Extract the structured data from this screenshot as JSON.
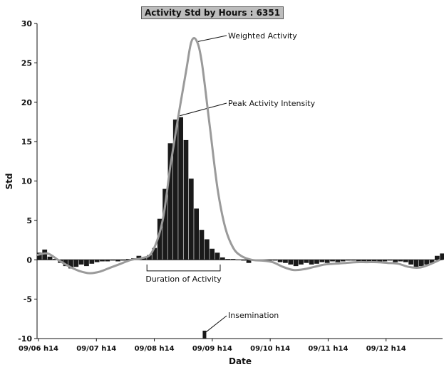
{
  "chart_data": {
    "type": "bar",
    "title": "Activity Std by Hours : 6351",
    "xlabel": "Date",
    "ylabel": "Std",
    "ylim": [
      -10,
      30
    ],
    "yticks": [
      30,
      25,
      20,
      15,
      10,
      5,
      0,
      -5,
      -10
    ],
    "x_tick_labels": [
      "09/06 h14",
      "09/07 h14",
      "09/08 h14",
      "09/09 h14",
      "09/10 h14",
      "09/11 h14",
      "09/12 h14"
    ],
    "x_range_hours": [
      0,
      155
    ],
    "bars": {
      "bar_width_hours": 2,
      "points": [
        {
          "x": 0,
          "y": 0.9
        },
        {
          "x": 2,
          "y": 1.3
        },
        {
          "x": 4,
          "y": 0.4
        },
        {
          "x": 6,
          "y": 0.1
        },
        {
          "x": 8,
          "y": -0.4
        },
        {
          "x": 10,
          "y": -0.8
        },
        {
          "x": 12,
          "y": -1.1
        },
        {
          "x": 14,
          "y": -0.9
        },
        {
          "x": 16,
          "y": -0.6
        },
        {
          "x": 18,
          "y": -0.8
        },
        {
          "x": 20,
          "y": -0.5
        },
        {
          "x": 22,
          "y": -0.3
        },
        {
          "x": 24,
          "y": -0.2
        },
        {
          "x": 26,
          "y": -0.2
        },
        {
          "x": 28,
          "y": -0.1
        },
        {
          "x": 30,
          "y": -0.2
        },
        {
          "x": 32,
          "y": -0.1
        },
        {
          "x": 34,
          "y": 0.1
        },
        {
          "x": 36,
          "y": 0.2
        },
        {
          "x": 38,
          "y": 0.5
        },
        {
          "x": 40,
          "y": 0.3
        },
        {
          "x": 42,
          "y": 0.6
        },
        {
          "x": 44,
          "y": 1.5
        },
        {
          "x": 46,
          "y": 5.2
        },
        {
          "x": 48,
          "y": 9.0
        },
        {
          "x": 50,
          "y": 14.8
        },
        {
          "x": 52,
          "y": 17.8
        },
        {
          "x": 54,
          "y": 18.1
        },
        {
          "x": 56,
          "y": 15.2
        },
        {
          "x": 58,
          "y": 10.3
        },
        {
          "x": 60,
          "y": 6.5
        },
        {
          "x": 62,
          "y": 3.8
        },
        {
          "x": 64,
          "y": 2.6
        },
        {
          "x": 66,
          "y": 1.4
        },
        {
          "x": 68,
          "y": 0.9
        },
        {
          "x": 70,
          "y": 0.3
        },
        {
          "x": 72,
          "y": 0.1
        },
        {
          "x": 74,
          "y": 0.1
        },
        {
          "x": 76,
          "y": 0.0
        },
        {
          "x": 78,
          "y": -0.1
        },
        {
          "x": 80,
          "y": -0.4
        },
        {
          "x": 82,
          "y": 0.0
        },
        {
          "x": 84,
          "y": 0.0
        },
        {
          "x": 86,
          "y": 0.0
        },
        {
          "x": 88,
          "y": -0.1
        },
        {
          "x": 90,
          "y": -0.1
        },
        {
          "x": 92,
          "y": -0.3
        },
        {
          "x": 94,
          "y": -0.4
        },
        {
          "x": 96,
          "y": -0.6
        },
        {
          "x": 98,
          "y": -0.8
        },
        {
          "x": 100,
          "y": -0.6
        },
        {
          "x": 102,
          "y": -0.4
        },
        {
          "x": 104,
          "y": -0.6
        },
        {
          "x": 106,
          "y": -0.5
        },
        {
          "x": 108,
          "y": -0.3
        },
        {
          "x": 110,
          "y": -0.4
        },
        {
          "x": 112,
          "y": -0.2
        },
        {
          "x": 114,
          "y": -0.3
        },
        {
          "x": 116,
          "y": -0.2
        },
        {
          "x": 118,
          "y": -0.1
        },
        {
          "x": 120,
          "y": -0.1
        },
        {
          "x": 122,
          "y": -0.2
        },
        {
          "x": 124,
          "y": -0.3
        },
        {
          "x": 126,
          "y": -0.4
        },
        {
          "x": 128,
          "y": -0.2
        },
        {
          "x": 130,
          "y": -0.3
        },
        {
          "x": 132,
          "y": -0.2
        },
        {
          "x": 134,
          "y": -0.1
        },
        {
          "x": 136,
          "y": -0.3
        },
        {
          "x": 138,
          "y": -0.2
        },
        {
          "x": 140,
          "y": -0.3
        },
        {
          "x": 142,
          "y": -0.6
        },
        {
          "x": 144,
          "y": -0.9
        },
        {
          "x": 146,
          "y": -0.8
        },
        {
          "x": 148,
          "y": -0.6
        },
        {
          "x": 150,
          "y": -0.4
        },
        {
          "x": 152,
          "y": 0.5
        },
        {
          "x": 154,
          "y": 0.8
        }
      ]
    },
    "line": {
      "color": "#9a9a9a",
      "points": [
        {
          "x": 0,
          "y": 0.6
        },
        {
          "x": 4,
          "y": 0.8
        },
        {
          "x": 8,
          "y": 0.0
        },
        {
          "x": 12,
          "y": -0.8
        },
        {
          "x": 16,
          "y": -1.4
        },
        {
          "x": 20,
          "y": -1.7
        },
        {
          "x": 24,
          "y": -1.5
        },
        {
          "x": 28,
          "y": -1.0
        },
        {
          "x": 32,
          "y": -0.5
        },
        {
          "x": 36,
          "y": 0.0
        },
        {
          "x": 40,
          "y": 0.2
        },
        {
          "x": 44,
          "y": 1.0
        },
        {
          "x": 48,
          "y": 5.0
        },
        {
          "x": 51,
          "y": 12.0
        },
        {
          "x": 54,
          "y": 18.2
        },
        {
          "x": 57,
          "y": 24.0
        },
        {
          "x": 59,
          "y": 27.7
        },
        {
          "x": 61,
          "y": 27.8
        },
        {
          "x": 63,
          "y": 25.0
        },
        {
          "x": 66,
          "y": 17.0
        },
        {
          "x": 69,
          "y": 9.0
        },
        {
          "x": 72,
          "y": 4.0
        },
        {
          "x": 75,
          "y": 1.5
        },
        {
          "x": 78,
          "y": 0.5
        },
        {
          "x": 82,
          "y": 0.0
        },
        {
          "x": 86,
          "y": -0.1
        },
        {
          "x": 90,
          "y": -0.3
        },
        {
          "x": 94,
          "y": -0.9
        },
        {
          "x": 98,
          "y": -1.3
        },
        {
          "x": 102,
          "y": -1.2
        },
        {
          "x": 106,
          "y": -0.9
        },
        {
          "x": 110,
          "y": -0.6
        },
        {
          "x": 114,
          "y": -0.5
        },
        {
          "x": 118,
          "y": -0.4
        },
        {
          "x": 122,
          "y": -0.3
        },
        {
          "x": 126,
          "y": -0.3
        },
        {
          "x": 130,
          "y": -0.3
        },
        {
          "x": 134,
          "y": -0.4
        },
        {
          "x": 138,
          "y": -0.5
        },
        {
          "x": 142,
          "y": -0.9
        },
        {
          "x": 146,
          "y": -1.0
        },
        {
          "x": 150,
          "y": -0.6
        },
        {
          "x": 154,
          "y": 0.0
        }
      ]
    },
    "insemination": {
      "x": 64,
      "y": -10,
      "height": 1.0
    },
    "duration_bracket": {
      "x_start": 42,
      "x_end": 70,
      "y": -0.6
    },
    "annotations": [
      {
        "text": "Weighted Activity",
        "x": 61,
        "y": 27.8
      },
      {
        "text": "Peak Activity Intensity",
        "x": 54,
        "y": 18.1
      },
      {
        "text": "Duration of Activity",
        "x": 56,
        "y": -1.8
      },
      {
        "text": "Insemination",
        "x": 64,
        "y": -9.2
      }
    ]
  }
}
